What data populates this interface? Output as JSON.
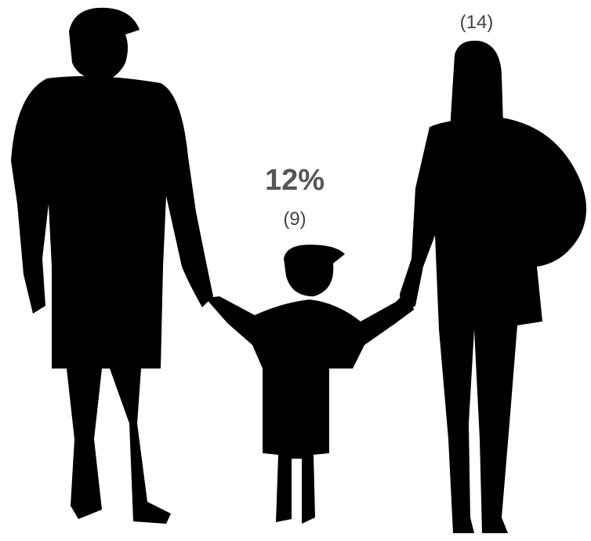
{
  "woman": {
    "count": "(14)"
  },
  "child": {
    "percent": "12%",
    "count": "(9)"
  }
}
